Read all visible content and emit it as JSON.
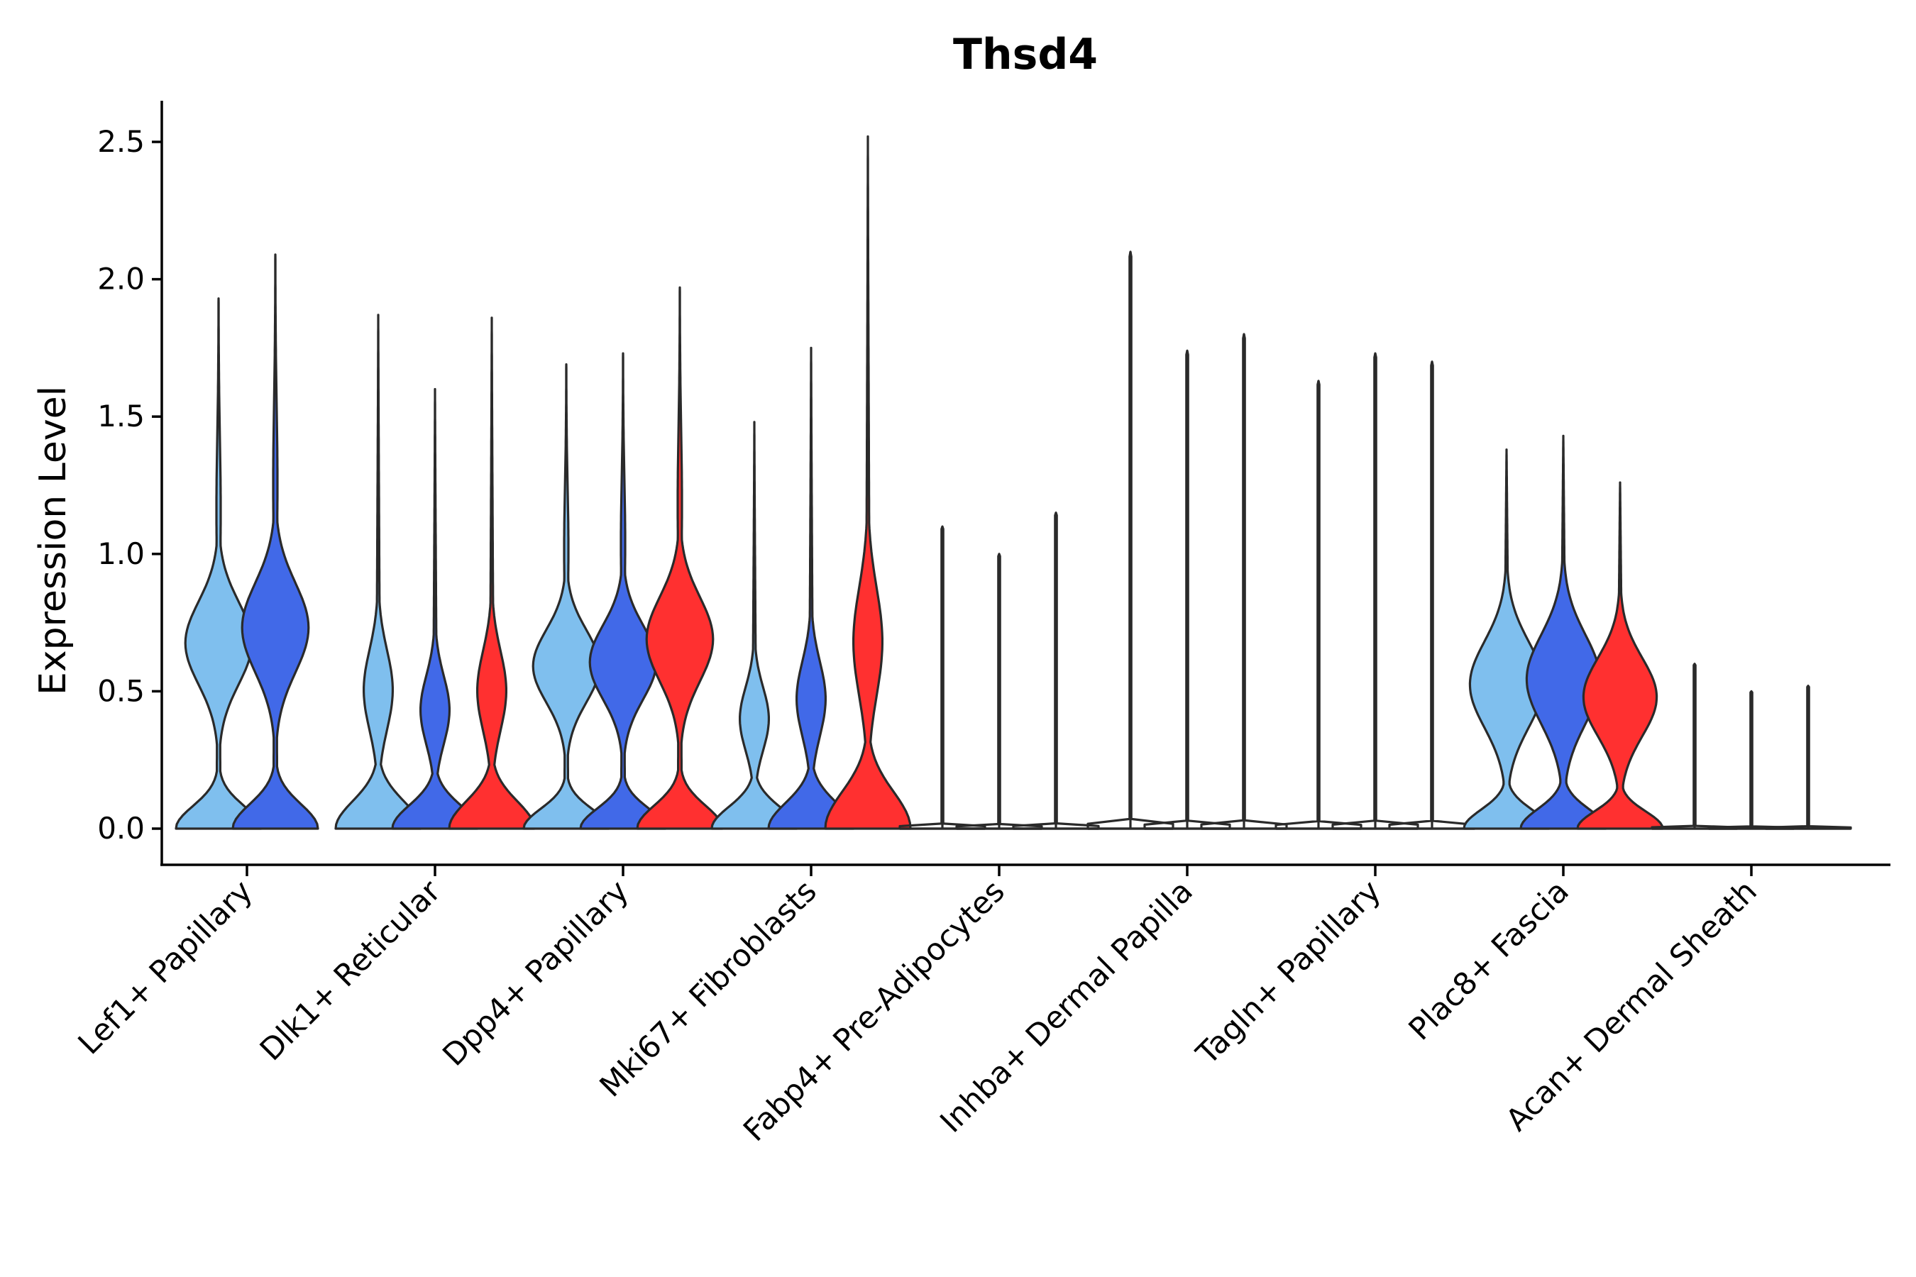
{
  "chart_data": {
    "type": "violin",
    "title": "Thsd4",
    "xlabel": "",
    "ylabel": "Expression Level",
    "ylim": [
      -0.13,
      2.65
    ],
    "yticks": [
      "0.0",
      "0.5",
      "1.0",
      "1.5",
      "2.0",
      "2.5"
    ],
    "ytick_values": [
      0,
      0.5,
      1.0,
      1.5,
      2.0,
      2.5
    ],
    "grid": false,
    "colors": {
      "group1": "#7fbfee",
      "group2": "#4169e8",
      "group3": "#ff3030",
      "outline": "#2a2a2a"
    },
    "categories": [
      "Lef1+ Papillary",
      "Dlk1+ Reticular",
      "Dpp4+ Papillary",
      "Mki67+ Fibroblasts",
      "Fabp4+ Pre-Adipocytes",
      "Inhba+ Dermal Papilla",
      "Tagln+ Papillary",
      "Plac8+ Fascia",
      "Acan+ Dermal Sheath"
    ],
    "series": [
      {
        "name": "group1",
        "color": "#7fbfee",
        "max": [
          1.93,
          1.87,
          1.69,
          1.48,
          1.1,
          2.1,
          1.63,
          1.38,
          0.6
        ],
        "profile": [
          "bimodal",
          "lowpeak",
          "bimodal",
          "lowpeak",
          "flat",
          "flat",
          "flat",
          "broad",
          "flat"
        ]
      },
      {
        "name": "group2",
        "color": "#4169e8",
        "max": [
          2.09,
          1.6,
          1.73,
          1.75,
          1.0,
          1.74,
          1.73,
          1.43,
          0.5
        ],
        "profile": [
          "bimodal",
          "lowpeak",
          "bimodal",
          "lowpeak",
          "flat",
          "flat",
          "flat",
          "broad",
          "flat"
        ]
      },
      {
        "name": "group3",
        "color": "#ff3030",
        "max": [
          null,
          1.86,
          1.97,
          2.52,
          1.15,
          1.8,
          1.7,
          1.26,
          0.52
        ],
        "profile": [
          null,
          "lowpeak",
          "bimodal",
          "lowpeak",
          "flat",
          "flat",
          "flat",
          "broad",
          "flat"
        ]
      }
    ]
  }
}
